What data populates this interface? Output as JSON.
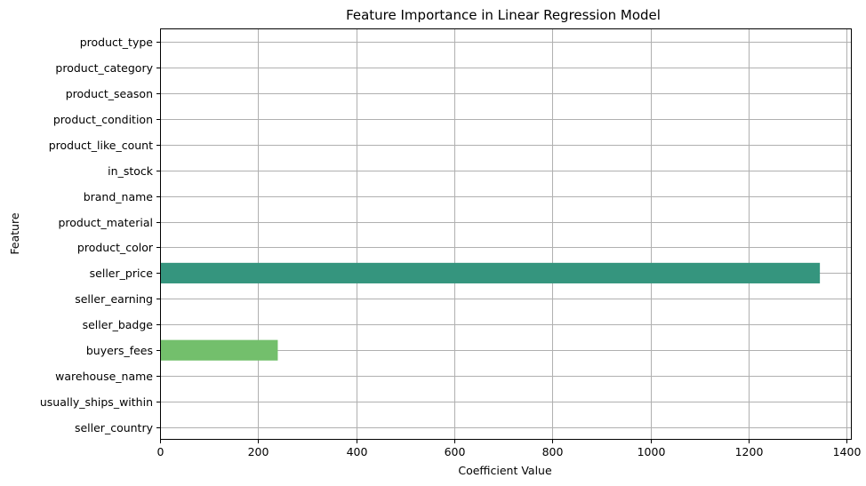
{
  "chart_data": {
    "type": "bar",
    "orientation": "horizontal",
    "title": "Feature Importance in Linear Regression Model",
    "xlabel": "Coefficient Value",
    "ylabel": "Feature",
    "categories": [
      "product_type",
      "product_category",
      "product_season",
      "product_condition",
      "product_like_count",
      "in_stock",
      "brand_name",
      "product_material",
      "product_color",
      "seller_price",
      "seller_earning",
      "seller_badge",
      "buyers_fees",
      "warehouse_name",
      "usually_ships_within",
      "seller_country"
    ],
    "values": [
      0,
      0,
      0,
      0,
      0,
      0,
      0,
      0,
      0,
      1345,
      0,
      0,
      240,
      0,
      0,
      0
    ],
    "bar_colors": {
      "seller_price": "#35957e",
      "buyers_fees": "#73bf6c"
    },
    "xlim": [
      0,
      1410
    ],
    "xticks": [
      0,
      200,
      400,
      600,
      800,
      1000,
      1200,
      1400
    ],
    "grid": true,
    "legend": "none"
  }
}
